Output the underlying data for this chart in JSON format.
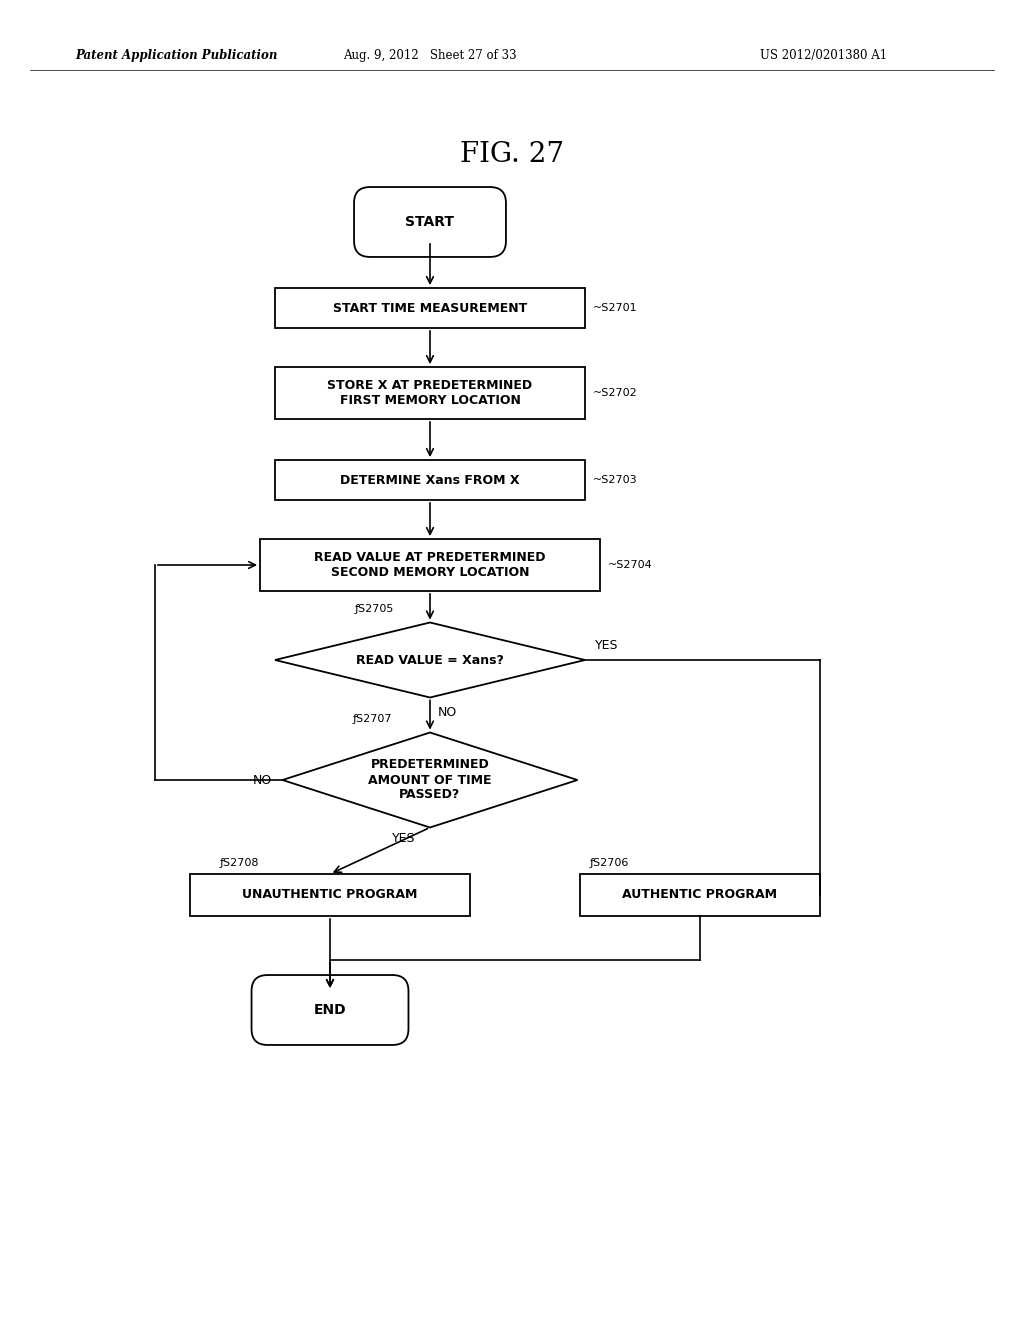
{
  "title": "FIG. 27",
  "header_left": "Patent Application Publication",
  "header_mid": "Aug. 9, 2012   Sheet 27 of 33",
  "header_right": "US 2012/0201380 A1",
  "background_color": "#ffffff",
  "fig_width": 10.24,
  "fig_height": 13.2,
  "dpi": 100
}
